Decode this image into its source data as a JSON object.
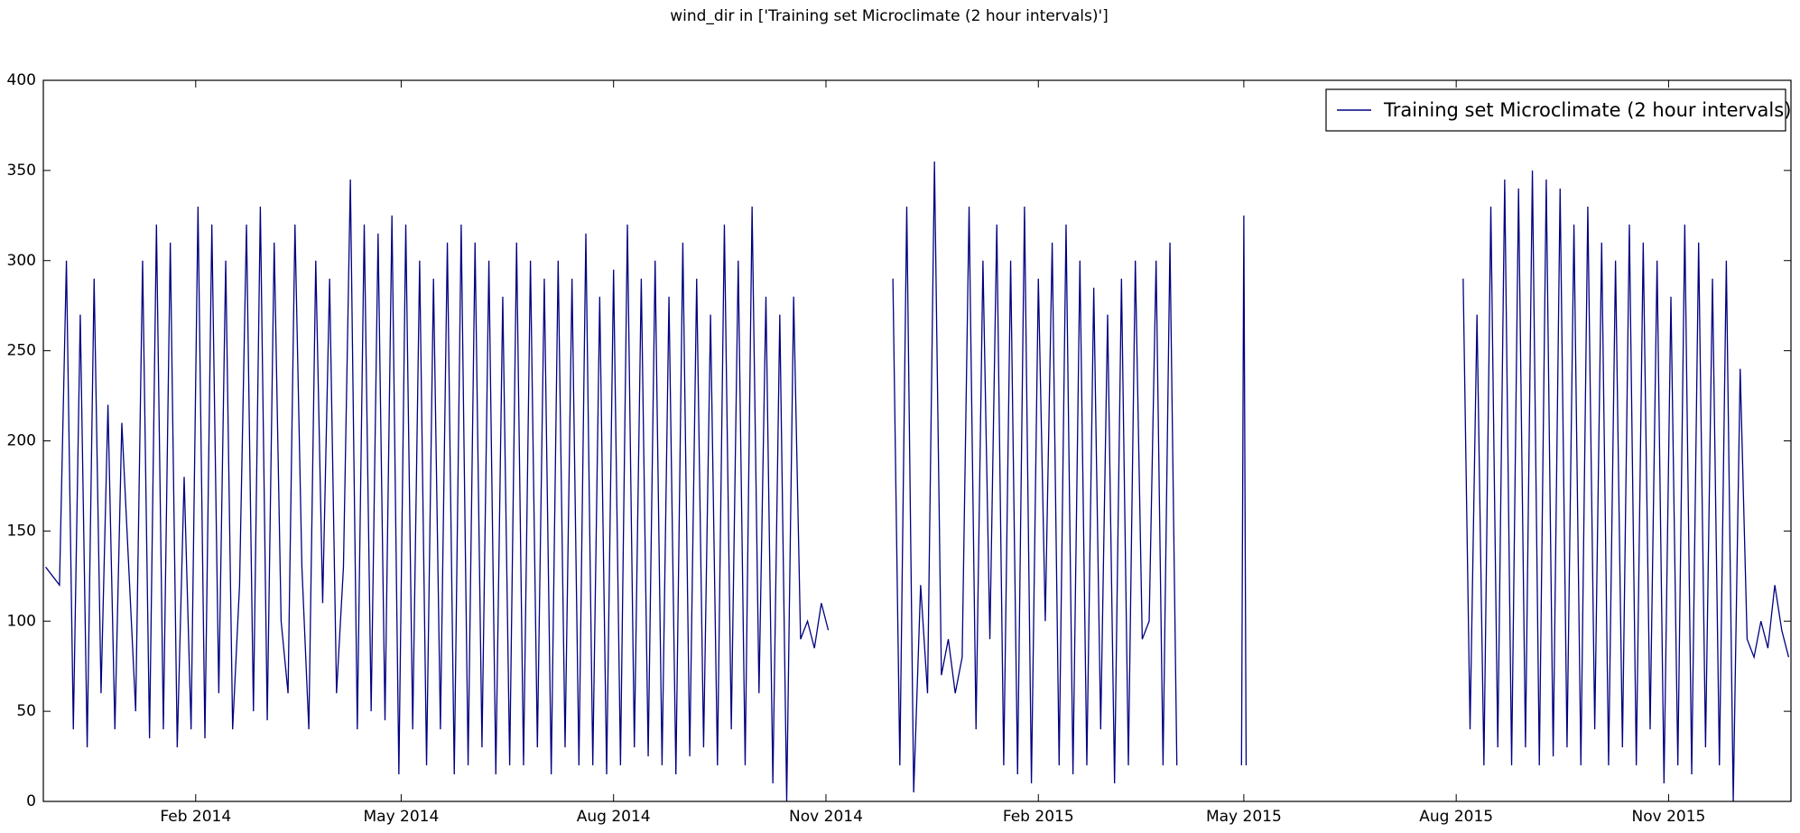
{
  "chart_data": {
    "type": "line",
    "title": "wind_dir in ['Training set Microclimate (2 hour intervals)']",
    "x": [
      "2013-11-28",
      "2013-12-01",
      "2013-12-04",
      "2013-12-07",
      "2013-12-10",
      "2013-12-13",
      "2013-12-16",
      "2013-12-19",
      "2013-12-22",
      "2013-12-25",
      "2013-12-28",
      "2013-12-31",
      "2014-01-03",
      "2014-01-06",
      "2014-01-09",
      "2014-01-12",
      "2014-01-15",
      "2014-01-18",
      "2014-01-21",
      "2014-01-24",
      "2014-01-27",
      "2014-01-30",
      "2014-02-02",
      "2014-02-05",
      "2014-02-08",
      "2014-02-11",
      "2014-02-14",
      "2014-02-17",
      "2014-02-20",
      "2014-02-23",
      "2014-02-26",
      "2014-03-01",
      "2014-03-04",
      "2014-03-07",
      "2014-03-10",
      "2014-03-13",
      "2014-03-16",
      "2014-03-19",
      "2014-03-22",
      "2014-03-25",
      "2014-03-28",
      "2014-03-31",
      "2014-04-03",
      "2014-04-06",
      "2014-04-09",
      "2014-04-12",
      "2014-04-15",
      "2014-04-18",
      "2014-04-21",
      "2014-04-24",
      "2014-04-27",
      "2014-04-30",
      "2014-05-03",
      "2014-05-06",
      "2014-05-09",
      "2014-05-12",
      "2014-05-15",
      "2014-05-18",
      "2014-05-21",
      "2014-05-24",
      "2014-05-27",
      "2014-05-30",
      "2014-06-02",
      "2014-06-05",
      "2014-06-08",
      "2014-06-11",
      "2014-06-14",
      "2014-06-17",
      "2014-06-20",
      "2014-06-23",
      "2014-06-26",
      "2014-06-29",
      "2014-07-02",
      "2014-07-05",
      "2014-07-08",
      "2014-07-11",
      "2014-07-14",
      "2014-07-17",
      "2014-07-20",
      "2014-07-23",
      "2014-07-26",
      "2014-07-29",
      "2014-08-01",
      "2014-08-04",
      "2014-08-07",
      "2014-08-10",
      "2014-08-13",
      "2014-08-16",
      "2014-08-19",
      "2014-08-22",
      "2014-08-25",
      "2014-08-28",
      "2014-08-31",
      "2014-09-03",
      "2014-09-06",
      "2014-09-09",
      "2014-09-12",
      "2014-09-15",
      "2014-09-18",
      "2014-09-21",
      "2014-09-24",
      "2014-09-27",
      "2014-09-30",
      "2014-10-03",
      "2014-10-06",
      "2014-10-09",
      "2014-10-12",
      "2014-10-15",
      "2014-10-18",
      "2014-10-21",
      "2014-10-24",
      "2014-10-27",
      "2014-10-30",
      "2014-11-02",
      "2014-11-16",
      "2014-11-30",
      "2014-12-03",
      "2014-12-06",
      "2014-12-09",
      "2014-12-12",
      "2014-12-15",
      "2014-12-18",
      "2014-12-21",
      "2014-12-24",
      "2014-12-27",
      "2014-12-30",
      "2015-01-02",
      "2015-01-05",
      "2015-01-08",
      "2015-01-11",
      "2015-01-14",
      "2015-01-17",
      "2015-01-20",
      "2015-01-23",
      "2015-01-26",
      "2015-01-29",
      "2015-02-01",
      "2015-02-04",
      "2015-02-07",
      "2015-02-10",
      "2015-02-13",
      "2015-02-16",
      "2015-02-19",
      "2015-02-22",
      "2015-02-25",
      "2015-02-28",
      "2015-03-03",
      "2015-03-06",
      "2015-03-09",
      "2015-03-12",
      "2015-03-15",
      "2015-03-18",
      "2015-03-21",
      "2015-03-24",
      "2015-03-27",
      "2015-03-30",
      "2015-04-02",
      "2015-04-18",
      "2015-04-30",
      "2015-05-01",
      "2015-05-02",
      "2015-06-15",
      "2015-08-04",
      "2015-08-07",
      "2015-08-10",
      "2015-08-13",
      "2015-08-16",
      "2015-08-19",
      "2015-08-22",
      "2015-08-25",
      "2015-08-28",
      "2015-08-31",
      "2015-09-03",
      "2015-09-06",
      "2015-09-09",
      "2015-09-12",
      "2015-09-15",
      "2015-09-18",
      "2015-09-21",
      "2015-09-24",
      "2015-09-27",
      "2015-09-30",
      "2015-10-03",
      "2015-10-06",
      "2015-10-09",
      "2015-10-12",
      "2015-10-15",
      "2015-10-18",
      "2015-10-21",
      "2015-10-24",
      "2015-10-27",
      "2015-10-30",
      "2015-11-02",
      "2015-11-05",
      "2015-11-08",
      "2015-11-11",
      "2015-11-14",
      "2015-11-17",
      "2015-11-20",
      "2015-11-23",
      "2015-11-26",
      "2015-11-29",
      "2015-12-02",
      "2015-12-05",
      "2015-12-08",
      "2015-12-11",
      "2015-12-14",
      "2015-12-17",
      "2015-12-20",
      "2015-12-23"
    ],
    "series": [
      {
        "name": "Training set Microclimate (2 hour intervals)",
        "color": "#000080",
        "values": [
          130,
          125,
          120,
          300,
          40,
          270,
          30,
          290,
          60,
          220,
          40,
          210,
          130,
          50,
          300,
          35,
          320,
          40,
          310,
          30,
          180,
          40,
          330,
          35,
          320,
          60,
          300,
          40,
          120,
          320,
          50,
          330,
          45,
          310,
          100,
          60,
          320,
          130,
          40,
          300,
          110,
          290,
          60,
          130,
          345,
          40,
          320,
          50,
          315,
          45,
          325,
          15,
          320,
          40,
          300,
          20,
          290,
          40,
          310,
          15,
          320,
          20,
          310,
          30,
          300,
          15,
          280,
          20,
          310,
          20,
          300,
          30,
          290,
          15,
          300,
          30,
          290,
          20,
          315,
          20,
          280,
          15,
          295,
          20,
          320,
          30,
          290,
          25,
          300,
          20,
          280,
          15,
          310,
          25,
          290,
          30,
          270,
          20,
          320,
          40,
          300,
          20,
          330,
          60,
          280,
          10,
          270,
          0,
          280,
          90,
          100,
          85,
          110,
          95,
          null,
          290,
          20,
          330,
          5,
          120,
          60,
          355,
          70,
          90,
          60,
          80,
          330,
          40,
          300,
          90,
          320,
          20,
          300,
          15,
          330,
          10,
          290,
          100,
          310,
          20,
          320,
          15,
          300,
          20,
          285,
          40,
          270,
          10,
          290,
          20,
          300,
          90,
          100,
          300,
          20,
          310,
          20,
          null,
          20,
          325,
          20,
          null,
          290,
          40,
          270,
          20,
          330,
          30,
          345,
          20,
          340,
          30,
          350,
          20,
          345,
          25,
          340,
          30,
          320,
          20,
          330,
          40,
          310,
          20,
          300,
          30,
          320,
          20,
          310,
          40,
          300,
          10,
          280,
          20,
          320,
          15,
          310,
          30,
          290,
          20,
          300,
          0,
          240,
          90,
          80,
          100,
          85,
          120,
          95,
          80
        ]
      }
    ],
    "xlim": [
      "2013-11-27",
      "2015-12-24"
    ],
    "xticks": [
      {
        "value": "2014-02-01",
        "label": "Feb 2014"
      },
      {
        "value": "2014-05-01",
        "label": "May 2014"
      },
      {
        "value": "2014-08-01",
        "label": "Aug 2014"
      },
      {
        "value": "2014-11-01",
        "label": "Nov 2014"
      },
      {
        "value": "2015-02-01",
        "label": "Feb 2015"
      },
      {
        "value": "2015-05-01",
        "label": "May 2015"
      },
      {
        "value": "2015-08-01",
        "label": "Aug 2015"
      },
      {
        "value": "2015-11-01",
        "label": "Nov 2015"
      }
    ],
    "ylim": [
      0,
      400
    ],
    "yticks": [
      0,
      50,
      100,
      150,
      200,
      250,
      300,
      350,
      400
    ],
    "grid": false,
    "legend": "upper right"
  }
}
